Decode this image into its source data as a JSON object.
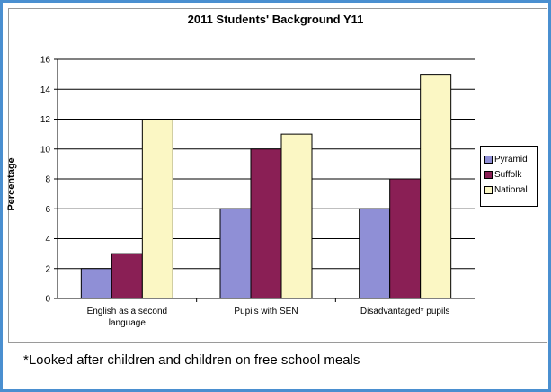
{
  "chart_data": {
    "type": "bar",
    "title": "2011 Students' Background Y11",
    "xlabel": "",
    "ylabel": "Percentage",
    "ylim": [
      0,
      16
    ],
    "yticks": [
      0,
      2,
      4,
      6,
      8,
      10,
      12,
      14,
      16
    ],
    "grid": true,
    "legend_position": "right",
    "categories": [
      "English as a second language",
      "Pupils with SEN",
      "Disadvantaged* pupils"
    ],
    "series": [
      {
        "name": "Pyramid",
        "color": "#8f8fd6",
        "values": [
          2,
          6,
          6
        ]
      },
      {
        "name": "Suffolk",
        "color": "#8a1f55",
        "values": [
          3,
          10,
          8
        ]
      },
      {
        "name": "National",
        "color": "#fbf7c4",
        "values": [
          12,
          11,
          15
        ]
      }
    ]
  },
  "footnote": "*Looked after children and children on free school meals"
}
